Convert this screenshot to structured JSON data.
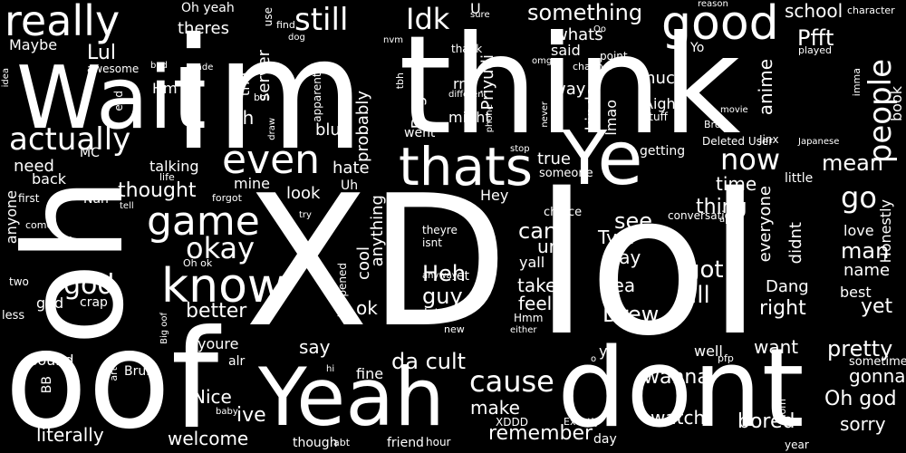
{
  "colors": {
    "background": "#000000",
    "text": "#ffffff"
  },
  "words": [
    "XD",
    "lol",
    "im",
    "think",
    "oof",
    "oh",
    "dont",
    "Yeah",
    "Wait",
    "Ye",
    "thats",
    "know",
    "really",
    "good",
    "people",
    "game",
    "still",
    "even",
    "actually",
    "Idk",
    "okay",
    "cause",
    "now",
    "something",
    "Pfft",
    "go",
    "Lul",
    "school",
    "thought",
    "mean",
    "man",
    "god",
    "see",
    "got",
    "Heh",
    "ill",
    "better",
    "da cult",
    "make",
    "cant",
    "guy",
    "take",
    "Drew",
    "right",
    "yet",
    "pretty",
    "want",
    "gonna",
    "sorry",
    "Oh god",
    "wanna",
    "watch",
    "bored",
    "remember",
    "literally",
    "welcome",
    "Nice",
    "ive",
    "say",
    "youre",
    "hate",
    "need",
    "talking",
    "look",
    "Uh",
    "mine",
    "true",
    "time",
    "thing",
    "everyone",
    "didnt",
    "love",
    "name",
    "best",
    "Honestly",
    "Dang",
    "Yea",
    "play",
    "Tyril",
    "ur",
    "feel",
    "yall",
    "anything",
    "cool",
    "ok",
    "whats",
    "said",
    "kinda",
    "lmao",
    "much",
    "way",
    "Aight",
    "stuff",
    "anime",
    "book",
    "Priyudi",
    "Doge",
    "probably",
    "rn",
    "might",
    "server",
    "tho",
    "Eh",
    "Hm",
    "Maybe",
    "theres",
    "back",
    "anyone",
    "Nah",
    "god",
    "crap",
    "less",
    "two",
    "type",
    "sound",
    "BB",
    "Bruh",
    "ya",
    "fine",
    "well",
    "Hey",
    "choice",
    "let",
    "late",
    "theyre",
    "isnt",
    "anyway",
    "Hmm",
    "either",
    "bot",
    "new",
    "alr",
    "hi",
    "pfp",
    "sometimes",
    "day",
    "Exactly",
    "XDDD",
    "friend",
    "hour",
    "though",
    "abt",
    "baby",
    "art",
    "mom",
    "year",
    "character",
    "played",
    "Japanese",
    "imma",
    "Deleted User",
    "Jinx",
    "Bro",
    "movie",
    "point",
    "channel",
    "Oo",
    "omg",
    "nvm",
    "thank",
    "dog",
    "find",
    "Oh yeah",
    "use",
    "U",
    "sure",
    "reason",
    "different",
    "went",
    "tbh",
    "apparently",
    "boi",
    "draw",
    "idea",
    "awesome",
    "bad",
    "made",
    "end",
    "MC",
    "life",
    "first",
    "forgot",
    "tell",
    "try",
    "Oh ok",
    "come",
    "Big oof",
    "happened",
    "never",
    "phone",
    "stop",
    "Yo",
    "getting",
    "someone",
    "little",
    "conversation",
    "app",
    "blue",
    "o",
    "talk"
  ]
}
